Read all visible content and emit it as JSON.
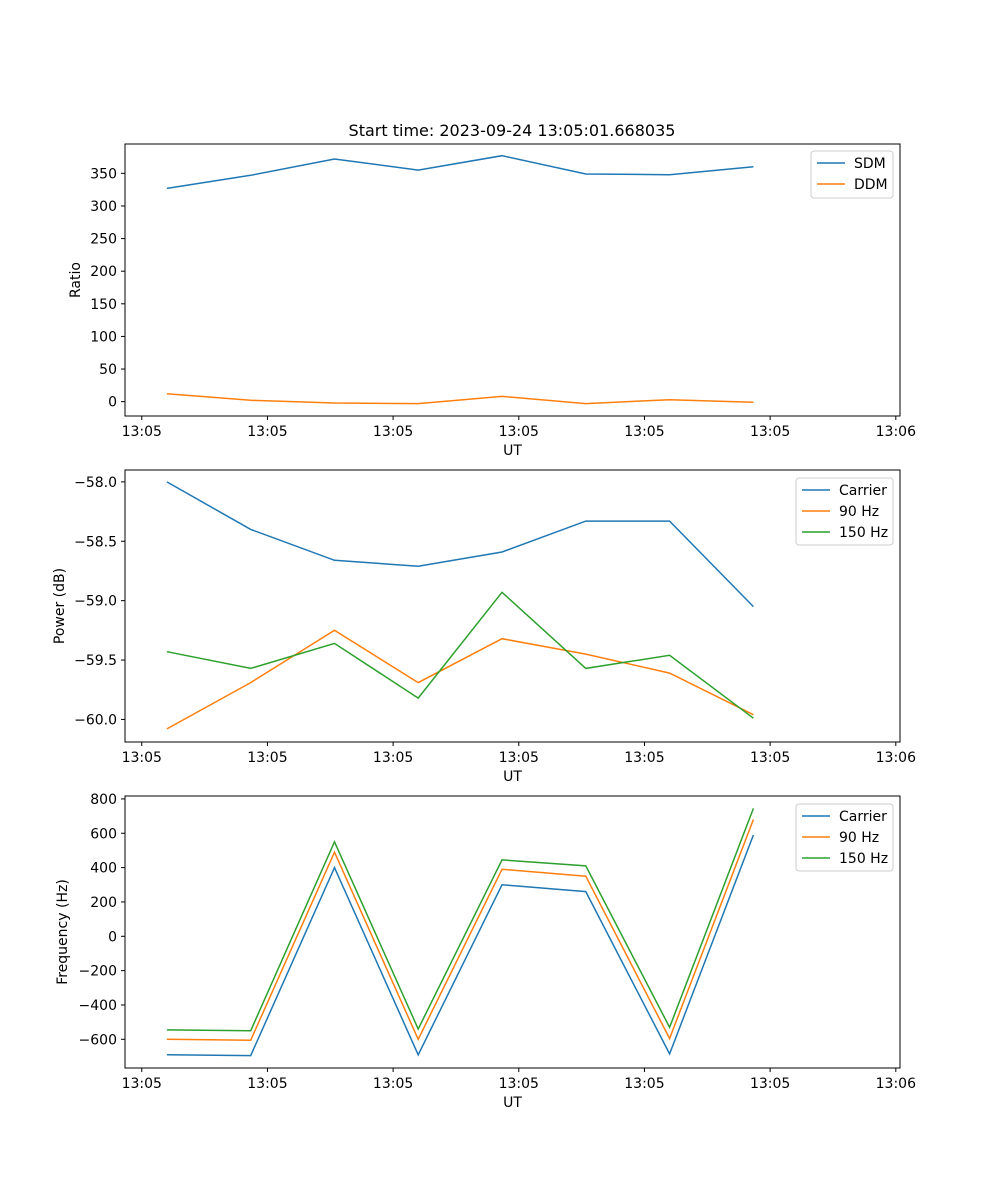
{
  "chart_data": [
    {
      "type": "line",
      "title": "Start time: 2023-09-24 13:05:01.668035",
      "xlabel": "UT",
      "ylabel": "Ratio",
      "x_tick_labels": [
        "13:05",
        "13:05",
        "13:05",
        "13:05",
        "13:05",
        "13:05",
        "13:05"
      ],
      "x_tick_labels_end": "13:06",
      "ylim": [
        -22,
        395
      ],
      "yticks": [
        0,
        50,
        100,
        150,
        200,
        250,
        300,
        350
      ],
      "legend_position": "top-right",
      "series": [
        {
          "name": "SDM",
          "color": "#1f77b4",
          "x": [
            0.5,
            1.5,
            2.5,
            3.5,
            4.5,
            5.5,
            6.5,
            7.5
          ],
          "values": [
            327,
            347,
            372,
            355,
            377,
            349,
            348,
            360
          ]
        },
        {
          "name": "DDM",
          "color": "#ff7f0e",
          "x": [
            0.5,
            1.5,
            2.5,
            3.5,
            4.5,
            5.5,
            6.5,
            7.5
          ],
          "values": [
            12,
            2,
            -2,
            -3,
            8,
            -3,
            3,
            -1
          ]
        }
      ]
    },
    {
      "type": "line",
      "title": "",
      "xlabel": "UT",
      "ylabel": "Power (dB)",
      "x_tick_labels": [
        "13:05",
        "13:05",
        "13:05",
        "13:05",
        "13:05",
        "13:05",
        "13:05"
      ],
      "x_tick_labels_end": "13:06",
      "ylim": [
        -60.19,
        -57.9
      ],
      "yticks": [
        -60.0,
        -59.5,
        -59.0,
        -58.5,
        -58.0
      ],
      "ytick_labels": [
        "−60.0",
        "−59.5",
        "−59.0",
        "−58.5",
        "−58.0"
      ],
      "legend_position": "top-right",
      "series": [
        {
          "name": "Carrier",
          "color": "#1f77b4",
          "x": [
            0.5,
            1.5,
            2.5,
            3.5,
            4.5,
            5.5,
            6.5,
            7.5
          ],
          "values": [
            -58.0,
            -58.4,
            -58.66,
            -58.71,
            -58.59,
            -58.33,
            -58.33,
            -59.05
          ]
        },
        {
          "name": "90 Hz",
          "color": "#ff7f0e",
          "x": [
            0.5,
            1.5,
            2.5,
            3.5,
            4.5,
            5.5,
            6.5,
            7.5
          ],
          "values": [
            -60.08,
            -59.69,
            -59.25,
            -59.69,
            -59.32,
            -59.45,
            -59.61,
            -59.96
          ]
        },
        {
          "name": "150 Hz",
          "color": "#2ca02c",
          "x": [
            0.5,
            1.5,
            2.5,
            3.5,
            4.5,
            5.5,
            6.5,
            7.5
          ],
          "values": [
            -59.43,
            -59.57,
            -59.36,
            -59.82,
            -58.93,
            -59.57,
            -59.46,
            -59.99
          ]
        }
      ]
    },
    {
      "type": "line",
      "title": "",
      "xlabel": "UT",
      "ylabel": "Frequency (Hz)",
      "x_tick_labels": [
        "13:05",
        "13:05",
        "13:05",
        "13:05",
        "13:05",
        "13:05",
        "13:05"
      ],
      "x_tick_labels_end": "13:06",
      "ylim": [
        -767,
        817
      ],
      "yticks": [
        -600,
        -400,
        -200,
        0,
        200,
        400,
        600,
        800
      ],
      "ytick_labels": [
        "−600",
        "−400",
        "−200",
        "0",
        "200",
        "400",
        "600",
        "800"
      ],
      "legend_position": "top-right",
      "series": [
        {
          "name": "Carrier",
          "color": "#1f77b4",
          "x": [
            0.5,
            1.5,
            2.5,
            3.5,
            4.5,
            5.5,
            6.5,
            7.5
          ],
          "values": [
            -690,
            -695,
            400,
            -690,
            300,
            260,
            -685,
            590
          ]
        },
        {
          "name": "90 Hz",
          "color": "#ff7f0e",
          "x": [
            0.5,
            1.5,
            2.5,
            3.5,
            4.5,
            5.5,
            6.5,
            7.5
          ],
          "values": [
            -600,
            -605,
            490,
            -600,
            390,
            350,
            -595,
            680
          ]
        },
        {
          "name": "150 Hz",
          "color": "#2ca02c",
          "x": [
            0.5,
            1.5,
            2.5,
            3.5,
            4.5,
            5.5,
            6.5,
            7.5
          ],
          "values": [
            -545,
            -550,
            550,
            -540,
            445,
            410,
            -530,
            745
          ]
        }
      ]
    }
  ]
}
